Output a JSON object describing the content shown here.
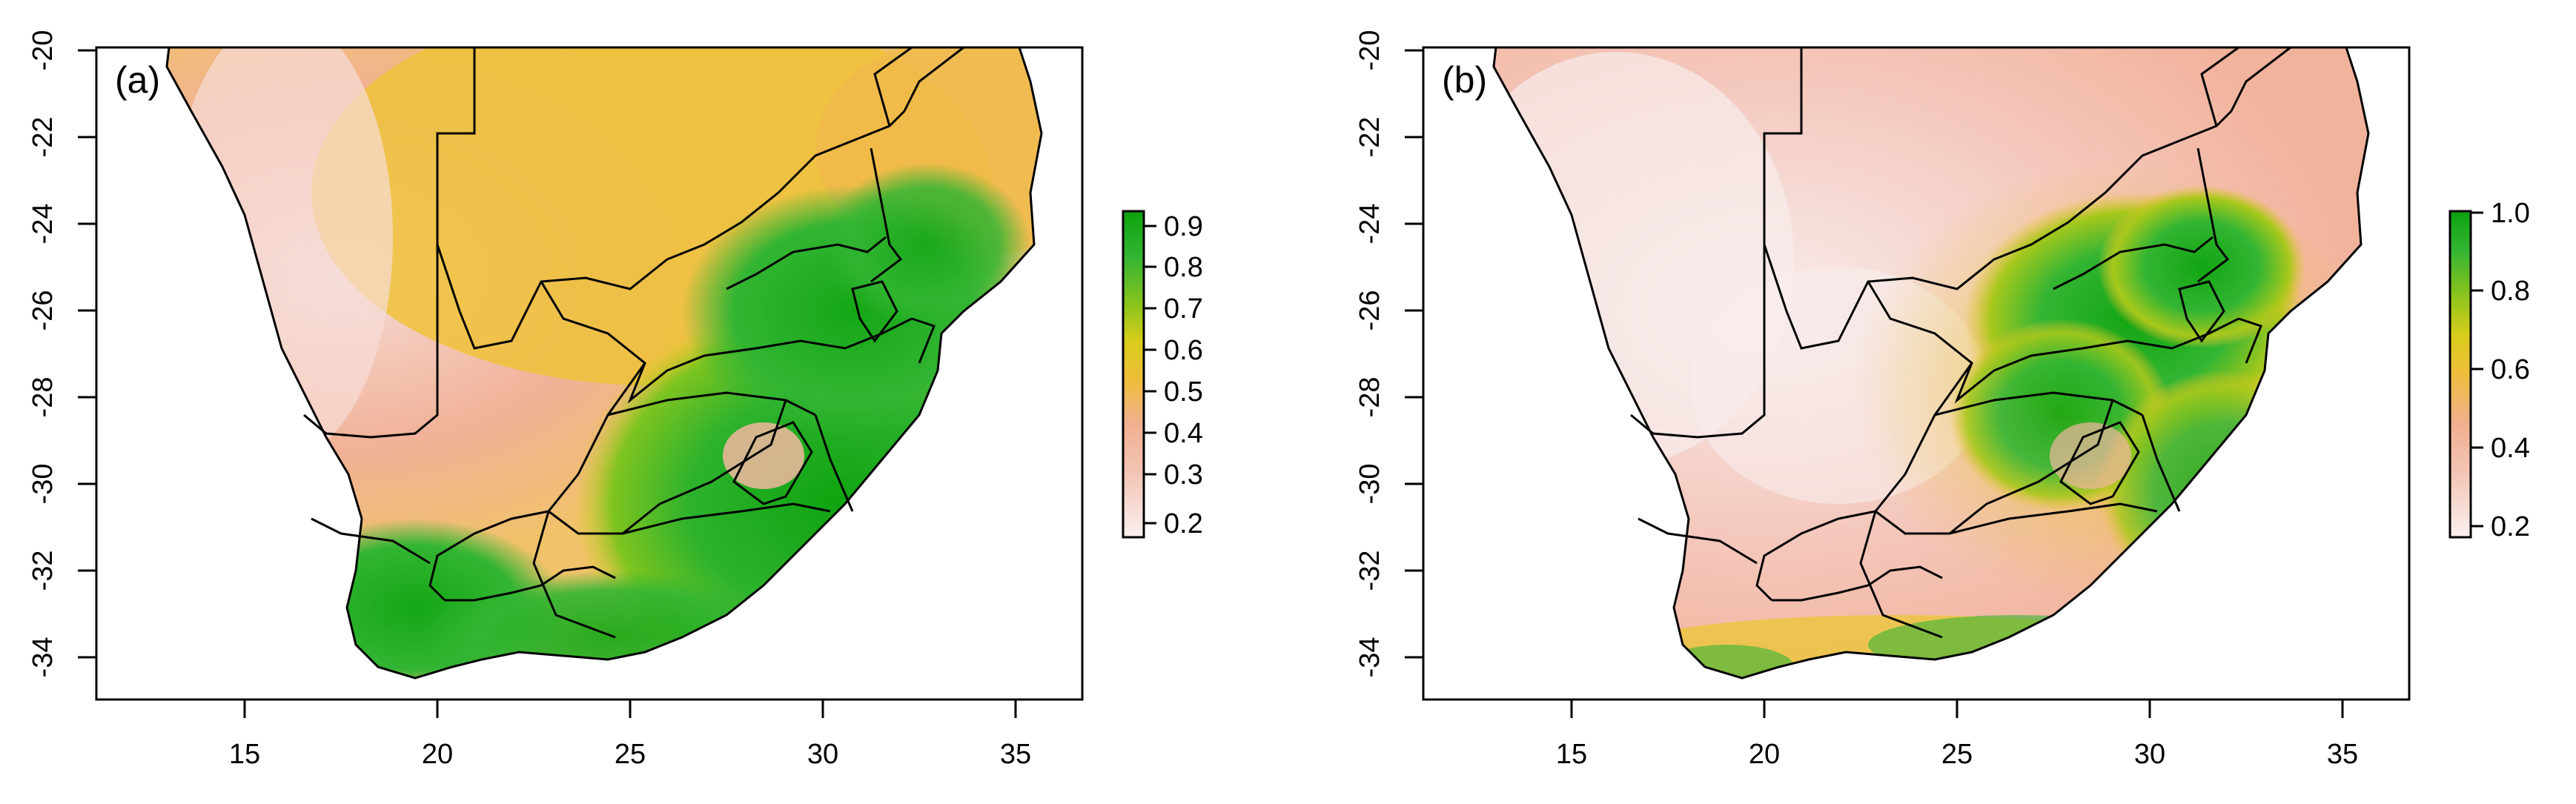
{
  "panels": [
    {
      "label": "(a)",
      "x_ticks": [
        "15",
        "20",
        "25",
        "30",
        "35"
      ],
      "y_ticks": [
        "-20",
        "-22",
        "-24",
        "-26",
        "-28",
        "-30",
        "-32",
        "-34"
      ],
      "legend": {
        "ticks": [
          "0.9",
          "0.8",
          "0.7",
          "0.6",
          "0.5",
          "0.4",
          "0.3",
          "0.2"
        ],
        "tick_values": [
          0.9,
          0.8,
          0.7,
          0.6,
          0.5,
          0.4,
          0.3,
          0.2
        ],
        "range": [
          0.17,
          0.95
        ]
      }
    },
    {
      "label": "(b)",
      "x_ticks": [
        "15",
        "20",
        "25",
        "30",
        "35"
      ],
      "y_ticks": [
        "-20",
        "-22",
        "-24",
        "-26",
        "-28",
        "-30",
        "-32",
        "-34"
      ],
      "legend": {
        "ticks": [
          "1.0",
          "0.8",
          "0.6",
          "0.4",
          "0.2"
        ],
        "tick_values": [
          1.0,
          0.8,
          0.6,
          0.4,
          0.2
        ],
        "range": [
          0.17,
          1.0
        ]
      }
    }
  ],
  "map": {
    "x_range": [
      11.5,
      36.8
    ],
    "y_range": [
      -35.0,
      -20.0
    ],
    "colors": {
      "low": "#f9ecec",
      "pink": "#f2b7a0",
      "orange": "#f0c23a",
      "yellow": "#e8cf1a",
      "green": "#39b739",
      "dark_green": "#11a611"
    }
  }
}
